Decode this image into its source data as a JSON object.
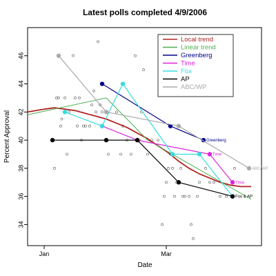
{
  "chart_data": {
    "type": "line",
    "title": "Latest polls completed  4/9/2006",
    "xlabel": "Date",
    "ylabel": "Percent Approval",
    "xlim": [
      -8,
      105
    ],
    "ylim": [
      32.5,
      48
    ],
    "x_ticks": [
      {
        "value": 0,
        "label": "Jan"
      },
      {
        "value": 59,
        "label": "Mar"
      }
    ],
    "y_ticks": [
      34,
      36,
      38,
      40,
      42,
      44,
      46
    ],
    "legend_position": "top-right",
    "legend": [
      {
        "name": "Local trend",
        "color": "#b22222"
      },
      {
        "name": "Linear trend",
        "color": "#4caf50"
      },
      {
        "name": "Greenberg",
        "color": "#00008b"
      },
      {
        "name": "Time",
        "color": "#dd22dd"
      },
      {
        "name": "Fox",
        "color": "#33dddd"
      },
      {
        "name": "AP",
        "color": "#000000"
      },
      {
        "name": "ABC/WP",
        "color": "#aaaaaa"
      }
    ],
    "scatter": {
      "x": [
        5,
        6,
        7,
        8,
        8.5,
        10,
        11,
        12,
        14,
        15,
        16,
        17,
        18,
        19,
        20,
        22,
        23,
        24,
        25,
        26,
        27,
        28,
        31,
        35,
        37,
        38,
        40,
        42,
        44,
        46,
        47,
        48,
        50,
        52,
        55,
        57,
        58,
        59,
        60,
        61,
        62,
        63,
        64,
        66,
        67,
        68,
        70,
        71,
        72,
        74,
        75,
        78,
        80,
        82,
        85,
        88,
        92
      ],
      "y": [
        38,
        43,
        43,
        41,
        41.5,
        43,
        39,
        42,
        46,
        43,
        41,
        43,
        40,
        41,
        41,
        41,
        42.5,
        43.5,
        42,
        47,
        42.5,
        42,
        39,
        42,
        39,
        41,
        40,
        39,
        46,
        40,
        42,
        45,
        39,
        40,
        40,
        34,
        36,
        37,
        38,
        39,
        38,
        36,
        37,
        38,
        36,
        36,
        36,
        34,
        33,
        36,
        37,
        38,
        37,
        37,
        36,
        36,
        38
      ]
    },
    "series": [
      {
        "name": "Local trend",
        "color": "#b22222",
        "width": 1.8,
        "x": [
          -8,
          0,
          5,
          10,
          15,
          20,
          25,
          30,
          35,
          40,
          45,
          50,
          55,
          60,
          65,
          70,
          75,
          80,
          85,
          90,
          95,
          100
        ],
        "y": [
          42,
          42.2,
          42.3,
          42.2,
          42.1,
          41.9,
          41.7,
          41.5,
          41.2,
          40.9,
          40.5,
          40.1,
          39.6,
          39.1,
          38.5,
          38.0,
          37.6,
          37.3,
          37.0,
          36.8,
          36.7,
          36.7
        ]
      },
      {
        "name": "Linear trend",
        "color": "#4caf50",
        "width": 1.0,
        "x": [
          -8,
          30,
          50,
          100
        ],
        "y": [
          41.8,
          43,
          40,
          35.8
        ]
      },
      {
        "name": "Greenberg",
        "color": "#00008b",
        "width": 1.2,
        "marker": true,
        "x": [
          28,
          61,
          77
        ],
        "y": [
          44,
          41,
          40
        ],
        "end_label": "Greenberg"
      },
      {
        "name": "Time",
        "color": "#dd22dd",
        "width": 1.2,
        "marker": true,
        "x": [
          28,
          45,
          80,
          91
        ],
        "y": [
          41,
          40,
          39,
          37
        ],
        "end_label": "Time",
        "extra_labels": [
          {
            "x": 80,
            "y": 39,
            "text": "Time"
          }
        ]
      },
      {
        "name": "Fox",
        "color": "#33dddd",
        "width": 1.2,
        "marker": true,
        "x": [
          10,
          28,
          38,
          62,
          75,
          91
        ],
        "y": [
          42,
          41,
          44,
          39,
          39,
          36
        ],
        "end_label": "Fox & AP"
      },
      {
        "name": "AP",
        "color": "#000000",
        "width": 1.2,
        "marker": true,
        "x": [
          4,
          30,
          45,
          65,
          91
        ],
        "y": [
          40,
          40,
          40,
          37,
          36
        ]
      },
      {
        "name": "ABC/WP",
        "color": "#aaaaaa",
        "width": 1.2,
        "marker": true,
        "x": [
          7,
          30,
          65,
          99
        ],
        "y": [
          46,
          42,
          41,
          38
        ],
        "end_label": "ABC/WP"
      }
    ]
  }
}
